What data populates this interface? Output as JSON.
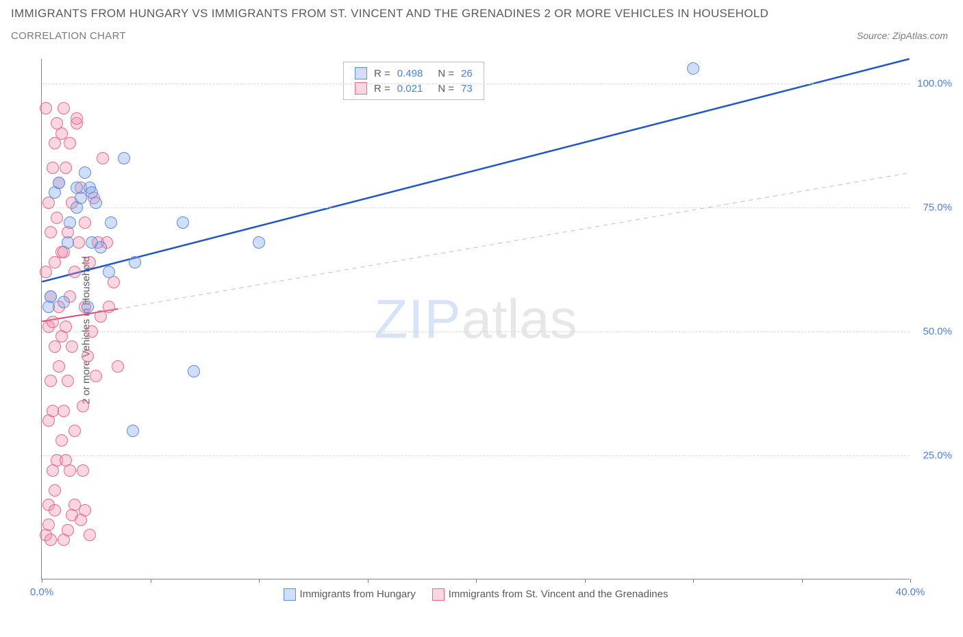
{
  "title_line1": "IMMIGRANTS FROM HUNGARY VS IMMIGRANTS FROM ST. VINCENT AND THE GRENADINES 2 OR MORE VEHICLES IN HOUSEHOLD",
  "title_line2": "CORRELATION CHART",
  "source": "Source: ZipAtlas.com",
  "watermark_zip": "ZIP",
  "watermark_atlas": "atlas",
  "chart": {
    "type": "scatter",
    "y_axis_label": "2 or more Vehicles in Household",
    "xlim": [
      0,
      40
    ],
    "ylim": [
      0,
      105
    ],
    "x_ticks": [
      0,
      5,
      10,
      15,
      20,
      25,
      30,
      35,
      40
    ],
    "x_tick_labels": {
      "0": "0.0%",
      "40": "40.0%"
    },
    "y_gridlines": [
      25,
      50,
      75,
      100
    ],
    "y_tick_labels": [
      "25.0%",
      "50.0%",
      "75.0%",
      "100.0%"
    ],
    "background_color": "#ffffff",
    "grid_color": "#d8d8d8",
    "axis_color": "#808080",
    "tick_label_color": "#4a7de8",
    "point_radius": 9,
    "series": [
      {
        "name": "Immigrants from Hungary",
        "color_fill": "rgba(120,160,235,0.35)",
        "color_stroke": "#5a8de0",
        "R": "0.498",
        "N": "26",
        "trend_solid": {
          "x1": 0,
          "y1": 60,
          "x2": 40,
          "y2": 105,
          "color": "#2457c5",
          "width": 2.5
        },
        "trend_dashed": null,
        "points": [
          [
            0.3,
            55
          ],
          [
            0.4,
            57
          ],
          [
            0.6,
            78
          ],
          [
            0.8,
            80
          ],
          [
            1.0,
            56
          ],
          [
            1.2,
            68
          ],
          [
            1.3,
            72
          ],
          [
            1.6,
            75
          ],
          [
            1.6,
            79
          ],
          [
            1.8,
            77
          ],
          [
            2.0,
            82
          ],
          [
            2.1,
            55
          ],
          [
            2.2,
            79
          ],
          [
            2.3,
            78
          ],
          [
            2.3,
            68
          ],
          [
            2.5,
            76
          ],
          [
            2.7,
            67
          ],
          [
            3.1,
            62
          ],
          [
            3.2,
            72
          ],
          [
            3.8,
            85
          ],
          [
            4.3,
            64
          ],
          [
            4.2,
            30
          ],
          [
            6.5,
            72
          ],
          [
            7.0,
            42
          ],
          [
            10.0,
            68
          ],
          [
            30.0,
            103
          ]
        ]
      },
      {
        "name": "Immigrants from St. Vincent and the Grenadines",
        "color_fill": "rgba(240,140,165,0.35)",
        "color_stroke": "#e46a8c",
        "R": "0.021",
        "N": "73",
        "trend_solid": {
          "x1": 0,
          "y1": 52,
          "x2": 3.5,
          "y2": 54.5,
          "color": "#e04876",
          "width": 2
        },
        "trend_dashed": {
          "x1": 3.5,
          "y1": 54.5,
          "x2": 40,
          "y2": 82,
          "color": "#f0a8bc",
          "width": 1
        },
        "points": [
          [
            0.2,
            9
          ],
          [
            0.3,
            11
          ],
          [
            0.3,
            15
          ],
          [
            0.6,
            14
          ],
          [
            0.7,
            24
          ],
          [
            0.5,
            22
          ],
          [
            0.3,
            32
          ],
          [
            0.5,
            34
          ],
          [
            0.4,
            40
          ],
          [
            0.8,
            43
          ],
          [
            0.6,
            47
          ],
          [
            0.9,
            49
          ],
          [
            0.3,
            51
          ],
          [
            0.5,
            52
          ],
          [
            0.8,
            55
          ],
          [
            0.4,
            57
          ],
          [
            0.2,
            62
          ],
          [
            0.6,
            64
          ],
          [
            0.9,
            66
          ],
          [
            0.4,
            70
          ],
          [
            0.7,
            73
          ],
          [
            0.3,
            76
          ],
          [
            0.8,
            80
          ],
          [
            0.5,
            83
          ],
          [
            0.6,
            88
          ],
          [
            0.9,
            90
          ],
          [
            1.0,
            8
          ],
          [
            1.2,
            10
          ],
          [
            1.4,
            13
          ],
          [
            1.1,
            24
          ],
          [
            1.3,
            22
          ],
          [
            1.5,
            15
          ],
          [
            1.0,
            34
          ],
          [
            1.2,
            40
          ],
          [
            1.4,
            47
          ],
          [
            1.1,
            51
          ],
          [
            1.3,
            57
          ],
          [
            1.5,
            62
          ],
          [
            1.0,
            66
          ],
          [
            1.2,
            70
          ],
          [
            1.4,
            76
          ],
          [
            1.1,
            83
          ],
          [
            1.3,
            88
          ],
          [
            1.6,
            92
          ],
          [
            1.8,
            79
          ],
          [
            1.7,
            68
          ],
          [
            2.0,
            55
          ],
          [
            2.2,
            64
          ],
          [
            2.0,
            72
          ],
          [
            2.3,
            50
          ],
          [
            2.1,
            45
          ],
          [
            2.5,
            41
          ],
          [
            1.9,
            35
          ],
          [
            2.4,
            77
          ],
          [
            2.6,
            68
          ],
          [
            2.2,
            9
          ],
          [
            2.0,
            14
          ],
          [
            1.9,
            22
          ],
          [
            3.0,
            68
          ],
          [
            3.3,
            60
          ],
          [
            3.1,
            55
          ],
          [
            3.5,
            43
          ],
          [
            2.8,
            85
          ],
          [
            2.7,
            53
          ],
          [
            0.2,
            95
          ],
          [
            0.7,
            92
          ],
          [
            1.0,
            95
          ],
          [
            1.6,
            93
          ],
          [
            0.4,
            8
          ],
          [
            1.8,
            12
          ],
          [
            0.6,
            18
          ],
          [
            0.9,
            28
          ],
          [
            1.5,
            30
          ]
        ]
      }
    ]
  },
  "legend_box": {
    "R_label": "R =",
    "N_label": "N ="
  },
  "legend_bottom": [
    "Immigrants from Hungary",
    "Immigrants from St. Vincent and the Grenadines"
  ]
}
